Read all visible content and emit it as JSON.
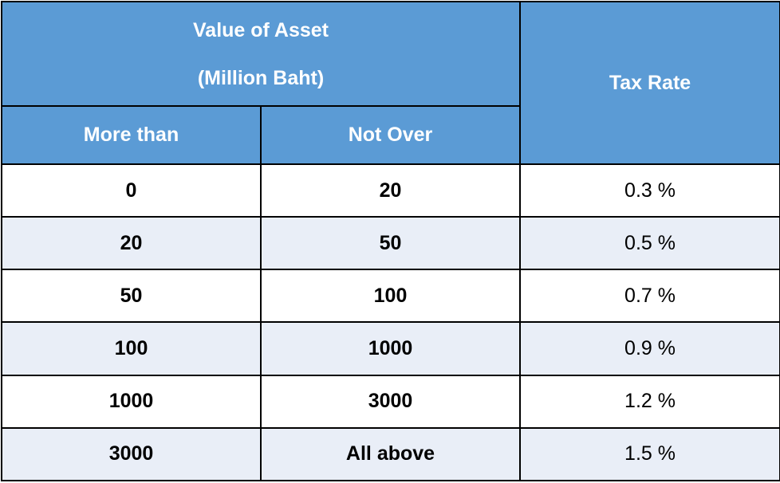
{
  "table": {
    "header": {
      "group_title_line1": "Value of Asset",
      "group_title_line2": "(Million Baht)",
      "col_more_than": "More than",
      "col_not_over": "Not Over",
      "col_tax_rate": "Tax Rate"
    },
    "rows": [
      {
        "more_than": "0",
        "not_over": "20",
        "tax_rate": "0.3 %"
      },
      {
        "more_than": "20",
        "not_over": "50",
        "tax_rate": "0.5 %"
      },
      {
        "more_than": "50",
        "not_over": "100",
        "tax_rate": "0.7 %"
      },
      {
        "more_than": "100",
        "not_over": "1000",
        "tax_rate": "0.9 %"
      },
      {
        "more_than": "1000",
        "not_over": "3000",
        "tax_rate": "1.2 %"
      },
      {
        "more_than": "3000",
        "not_over": "All above",
        "tax_rate": "1.5 %"
      }
    ],
    "colors": {
      "header_bg": "#5b9bd5",
      "header_text": "#ffffff",
      "row_tint": "#e9eef7",
      "row_white": "#ffffff",
      "border": "#000000"
    }
  }
}
